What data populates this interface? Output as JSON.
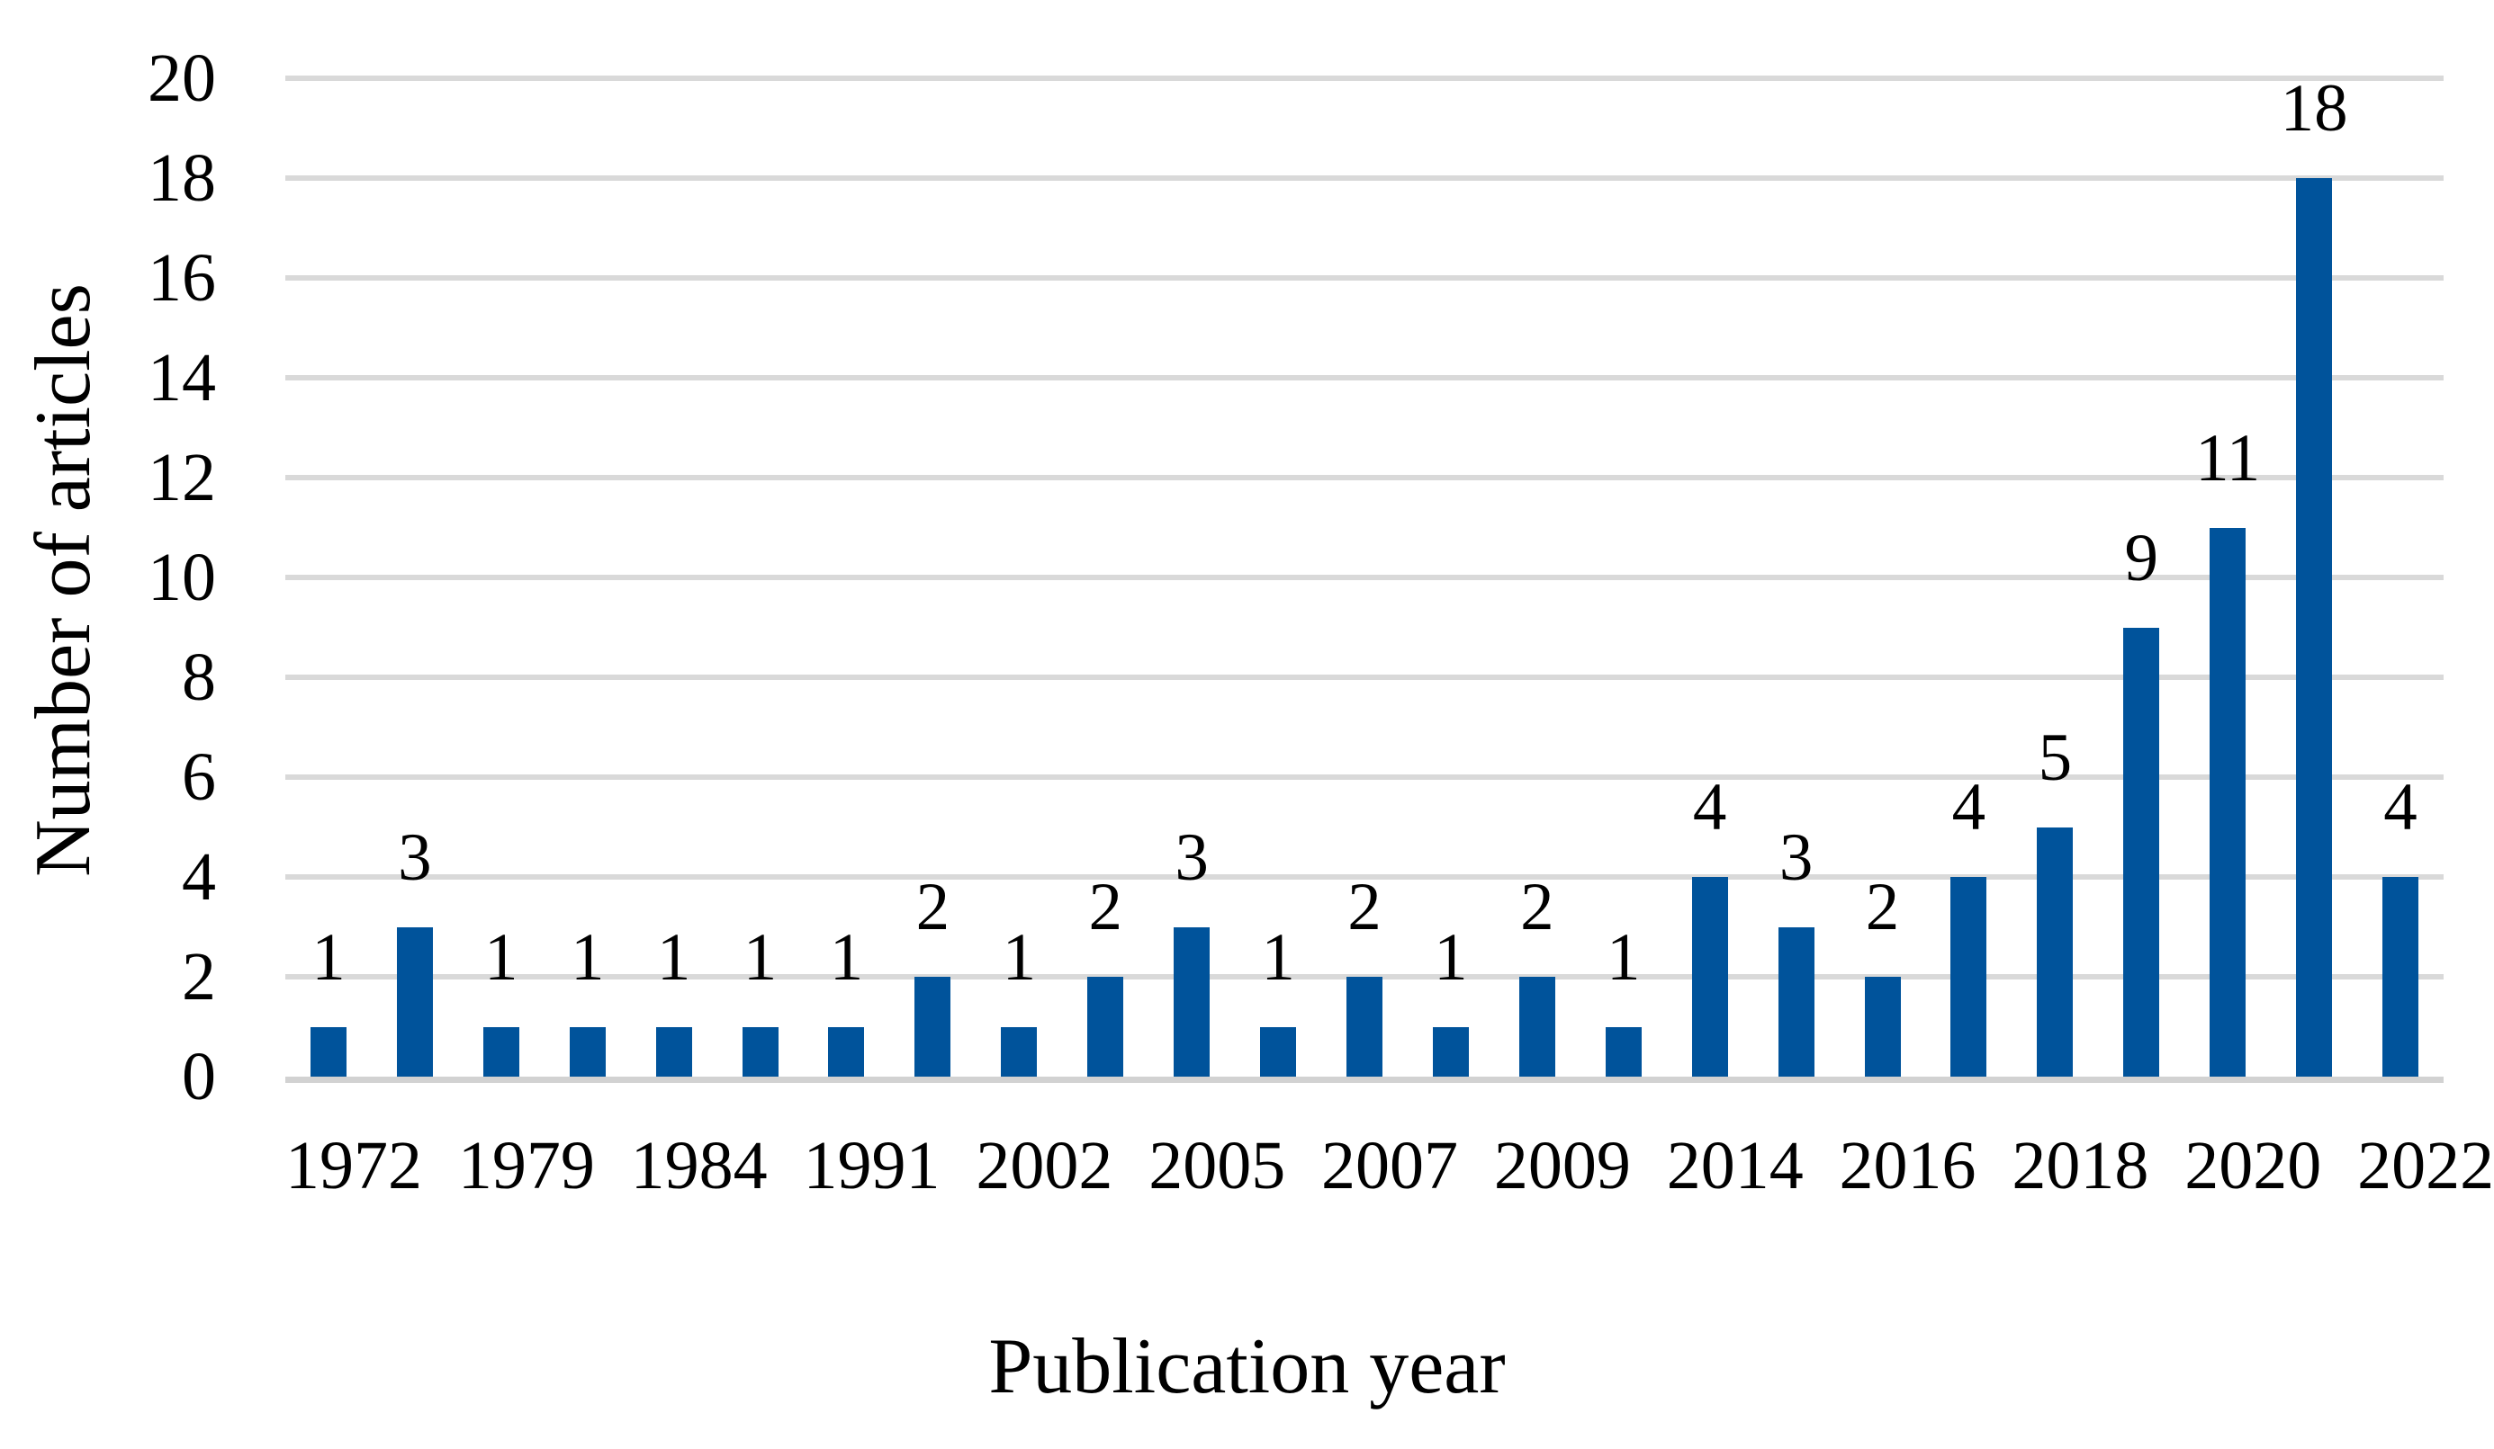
{
  "chart_data": {
    "type": "bar",
    "title": "",
    "xlabel": "Publication year",
    "ylabel": "Number of articles",
    "ylim": [
      0,
      20
    ],
    "ytick_step": 2,
    "y_tick_labels": [
      "0",
      "2",
      "4",
      "6",
      "8",
      "10",
      "12",
      "14",
      "16",
      "18",
      "20"
    ],
    "grid": true,
    "legend_position": "none",
    "categories": [
      "1972",
      "",
      "1979",
      "",
      "1984",
      "",
      "1991",
      "",
      "2002",
      "",
      "2005",
      "",
      "2007",
      "",
      "2009",
      "",
      "2014",
      "",
      "2016",
      "",
      "2018",
      "",
      "2020",
      "",
      "2022"
    ],
    "values": [
      1,
      3,
      1,
      1,
      1,
      1,
      1,
      2,
      1,
      2,
      3,
      1,
      2,
      1,
      2,
      1,
      4,
      3,
      2,
      4,
      5,
      9,
      11,
      18,
      4
    ],
    "data_labels": [
      "1",
      "3",
      "1",
      "1",
      "1",
      "1",
      "1",
      "2",
      "1",
      "2",
      "3",
      "1",
      "2",
      "1",
      "2",
      "1",
      "4",
      "3",
      "2",
      "4",
      "5",
      "9",
      "11",
      "18",
      "4"
    ],
    "x_tick_labels": [
      "1972",
      "1979",
      "1984",
      "1991",
      "2002",
      "2005",
      "2007",
      "2009",
      "2014",
      "2016",
      "2018",
      "2020",
      "2022"
    ],
    "colors": {
      "bar": "#00539B",
      "gridline": "#D9D9D9",
      "axis_line": "#D2D2D2",
      "text": "#000000",
      "background": "#FFFFFF"
    }
  }
}
